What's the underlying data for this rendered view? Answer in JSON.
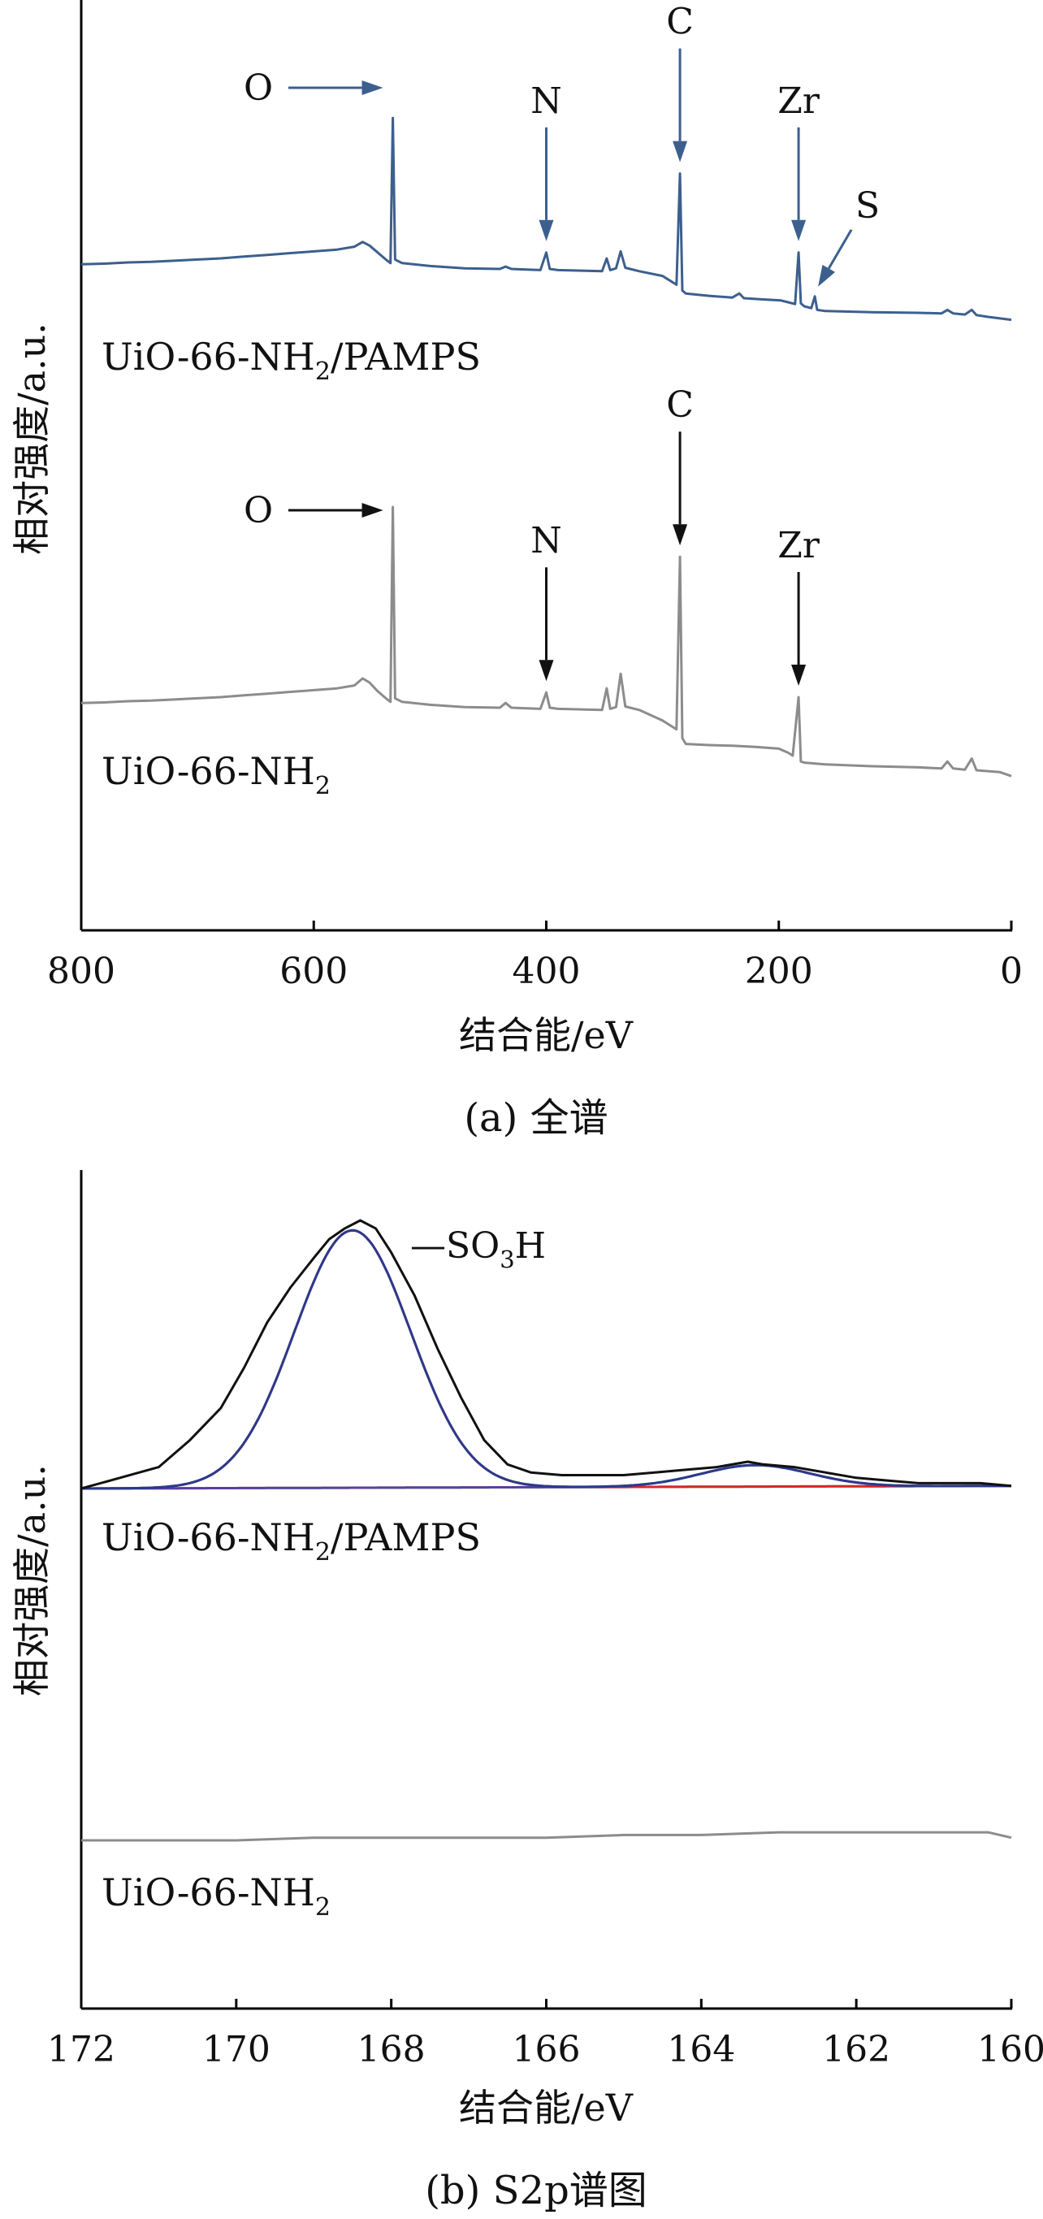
{
  "figure": {
    "panels": [
      {
        "caption": "(a) 全谱",
        "xlabel": "结合能/eV",
        "ylabel": "相对强度/a.u."
      },
      {
        "caption": "(b) S2p谱图",
        "xlabel": "结合能/eV",
        "ylabel": "相对强度/a.u."
      }
    ]
  },
  "colors": {
    "blue": "#3c5f8e",
    "gray": "#8c8c8c",
    "black": "#111111",
    "red": "#d62728",
    "purple": "#5b3fa0",
    "green": "#5cb85c",
    "navy": "#2a3a8c"
  },
  "chart_data": [
    {
      "type": "line",
      "title": "(a) 全谱",
      "xlabel": "结合能/eV",
      "ylabel": "相对强度/a.u.",
      "xlim": [
        800,
        0
      ],
      "x_reversed": true,
      "xticks": [
        800,
        600,
        400,
        200,
        0
      ],
      "y_ticks_shown": false,
      "series": [
        {
          "name": "UiO-66-NH2/PAMPS",
          "label_parts": [
            "UiO-66-NH",
            "2",
            "/PAMPS"
          ],
          "color": "blue",
          "points": [
            [
              800,
              0.9
            ],
            [
              780,
              0.91
            ],
            [
              760,
              0.93
            ],
            [
              740,
              0.94
            ],
            [
              720,
              0.96
            ],
            [
              700,
              0.98
            ],
            [
              680,
              1.0
            ],
            [
              660,
              1.03
            ],
            [
              640,
              1.06
            ],
            [
              620,
              1.09
            ],
            [
              600,
              1.12
            ],
            [
              580,
              1.15
            ],
            [
              565,
              1.2
            ],
            [
              558,
              1.28
            ],
            [
              552,
              1.22
            ],
            [
              545,
              1.1
            ],
            [
              538,
              0.98
            ],
            [
              534,
              0.92
            ],
            [
              532,
              3.4
            ],
            [
              530,
              0.98
            ],
            [
              524,
              0.92
            ],
            [
              500,
              0.87
            ],
            [
              470,
              0.83
            ],
            [
              440,
              0.82
            ],
            [
              435,
              0.86
            ],
            [
              430,
              0.82
            ],
            [
              405,
              0.8
            ],
            [
              400,
              1.1
            ],
            [
              397,
              0.82
            ],
            [
              390,
              0.8
            ],
            [
              352,
              0.78
            ],
            [
              348,
              1.0
            ],
            [
              345,
              0.8
            ],
            [
              340,
              0.83
            ],
            [
              336,
              1.12
            ],
            [
              332,
              0.84
            ],
            [
              320,
              0.78
            ],
            [
              300,
              0.7
            ],
            [
              292,
              0.6
            ],
            [
              288,
              0.55
            ],
            [
              285,
              2.45
            ],
            [
              283,
              0.45
            ],
            [
              280,
              0.4
            ],
            [
              260,
              0.36
            ],
            [
              240,
              0.33
            ],
            [
              234,
              0.4
            ],
            [
              230,
              0.32
            ],
            [
              215,
              0.3
            ],
            [
              198,
              0.28
            ],
            [
              192,
              0.25
            ],
            [
              186,
              0.22
            ],
            [
              183,
              1.1
            ],
            [
              181,
              0.23
            ],
            [
              178,
              0.18
            ],
            [
              172,
              0.15
            ],
            [
              169,
              0.35
            ],
            [
              167,
              0.12
            ],
            [
              160,
              0.1
            ],
            [
              120,
              0.08
            ],
            [
              80,
              0.07
            ],
            [
              60,
              0.06
            ],
            [
              55,
              0.12
            ],
            [
              50,
              0.06
            ],
            [
              40,
              0.04
            ],
            [
              34,
              0.12
            ],
            [
              30,
              0.03
            ],
            [
              20,
              0.0
            ],
            [
              0,
              -0.05
            ]
          ]
        },
        {
          "name": "UiO-66-NH2",
          "label_parts": [
            "UiO-66-NH",
            "2",
            ""
          ],
          "color": "gray",
          "points": [
            [
              800,
              0.9
            ],
            [
              780,
              0.91
            ],
            [
              760,
              0.93
            ],
            [
              740,
              0.94
            ],
            [
              720,
              0.96
            ],
            [
              700,
              0.98
            ],
            [
              680,
              1.0
            ],
            [
              660,
              1.03
            ],
            [
              640,
              1.06
            ],
            [
              620,
              1.09
            ],
            [
              600,
              1.12
            ],
            [
              580,
              1.15
            ],
            [
              565,
              1.2
            ],
            [
              558,
              1.32
            ],
            [
              552,
              1.25
            ],
            [
              545,
              1.1
            ],
            [
              538,
              0.98
            ],
            [
              534,
              0.92
            ],
            [
              532,
              4.25
            ],
            [
              530,
              0.98
            ],
            [
              524,
              0.92
            ],
            [
              500,
              0.87
            ],
            [
              470,
              0.83
            ],
            [
              440,
              0.82
            ],
            [
              435,
              0.9
            ],
            [
              430,
              0.82
            ],
            [
              405,
              0.8
            ],
            [
              400,
              1.08
            ],
            [
              397,
              0.82
            ],
            [
              390,
              0.8
            ],
            [
              352,
              0.78
            ],
            [
              348,
              1.15
            ],
            [
              345,
              0.8
            ],
            [
              340,
              0.83
            ],
            [
              336,
              1.4
            ],
            [
              332,
              0.84
            ],
            [
              320,
              0.78
            ],
            [
              300,
              0.6
            ],
            [
              292,
              0.5
            ],
            [
              288,
              0.45
            ],
            [
              285,
              3.4
            ],
            [
              283,
              0.3
            ],
            [
              280,
              0.2
            ],
            [
              260,
              0.18
            ],
            [
              240,
              0.17
            ],
            [
              220,
              0.15
            ],
            [
              200,
              0.12
            ],
            [
              192,
              0.05
            ],
            [
              188,
              0.0
            ],
            [
              183,
              1.0
            ],
            [
              181,
              -0.1
            ],
            [
              178,
              -0.12
            ],
            [
              160,
              -0.15
            ],
            [
              120,
              -0.18
            ],
            [
              80,
              -0.2
            ],
            [
              60,
              -0.22
            ],
            [
              55,
              -0.1
            ],
            [
              50,
              -0.22
            ],
            [
              40,
              -0.24
            ],
            [
              34,
              -0.05
            ],
            [
              30,
              -0.25
            ],
            [
              10,
              -0.28
            ],
            [
              0,
              -0.35
            ]
          ]
        }
      ],
      "annotations": [
        {
          "series": "UiO-66-NH2/PAMPS",
          "text": "O",
          "arrow": "right",
          "target_x": 532
        },
        {
          "series": "UiO-66-NH2/PAMPS",
          "text": "N",
          "arrow": "down",
          "target_x": 400
        },
        {
          "series": "UiO-66-NH2/PAMPS",
          "text": "C",
          "arrow": "down",
          "target_x": 285
        },
        {
          "series": "UiO-66-NH2/PAMPS",
          "text": "Zr",
          "arrow": "down",
          "target_x": 183
        },
        {
          "series": "UiO-66-NH2/PAMPS",
          "text": "S",
          "arrow": "down-left",
          "target_x": 169
        },
        {
          "series": "UiO-66-NH2",
          "text": "O",
          "arrow": "right",
          "target_x": 532
        },
        {
          "series": "UiO-66-NH2",
          "text": "N",
          "arrow": "down",
          "target_x": 400
        },
        {
          "series": "UiO-66-NH2",
          "text": "C",
          "arrow": "down",
          "target_x": 285
        },
        {
          "series": "UiO-66-NH2",
          "text": "Zr",
          "arrow": "down",
          "target_x": 183
        }
      ]
    },
    {
      "type": "line",
      "title": "(b) S2p谱图",
      "xlabel": "结合能/eV",
      "ylabel": "相对强度/a.u.",
      "xlim": [
        172,
        160
      ],
      "x_reversed": true,
      "xticks": [
        172,
        170,
        168,
        166,
        164,
        162,
        160
      ],
      "y_ticks_shown": false,
      "peak_label": {
        "parts": [
          "—SO",
          "3",
          "H"
        ]
      },
      "series": [
        {
          "name": "UiO-66-NH2/PAMPS",
          "label_parts": [
            "UiO-66-NH",
            "2",
            "/PAMPS"
          ],
          "color": "black",
          "role": "measured",
          "points": [
            [
              172,
              0.0
            ],
            [
              171.5,
              0.04
            ],
            [
              171,
              0.08
            ],
            [
              170.6,
              0.18
            ],
            [
              170.2,
              0.3
            ],
            [
              169.9,
              0.45
            ],
            [
              169.6,
              0.62
            ],
            [
              169.3,
              0.75
            ],
            [
              169.0,
              0.86
            ],
            [
              168.8,
              0.93
            ],
            [
              168.6,
              0.97
            ],
            [
              168.4,
              1.0
            ],
            [
              168.2,
              0.97
            ],
            [
              168.0,
              0.88
            ],
            [
              167.7,
              0.72
            ],
            [
              167.4,
              0.52
            ],
            [
              167.1,
              0.34
            ],
            [
              166.8,
              0.18
            ],
            [
              166.5,
              0.09
            ],
            [
              166.2,
              0.06
            ],
            [
              165.8,
              0.05
            ],
            [
              165.4,
              0.05
            ],
            [
              165.0,
              0.05
            ],
            [
              164.6,
              0.06
            ],
            [
              164.2,
              0.07
            ],
            [
              163.8,
              0.08
            ],
            [
              163.4,
              0.1
            ],
            [
              163.2,
              0.09
            ],
            [
              162.8,
              0.08
            ],
            [
              162.4,
              0.06
            ],
            [
              162.0,
              0.04
            ],
            [
              161.6,
              0.03
            ],
            [
              161.2,
              0.02
            ],
            [
              160.8,
              0.02
            ],
            [
              160.4,
              0.02
            ],
            [
              160.0,
              0.01
            ]
          ]
        },
        {
          "name": "UiO-66-NH2",
          "label_parts": [
            "UiO-66-NH",
            "2",
            ""
          ],
          "color": "gray",
          "points": [
            [
              172,
              0.0
            ],
            [
              171,
              0.0
            ],
            [
              170,
              0.0
            ],
            [
              169,
              0.01
            ],
            [
              168,
              0.01
            ],
            [
              167,
              0.01
            ],
            [
              166,
              0.01
            ],
            [
              165,
              0.02
            ],
            [
              164,
              0.02
            ],
            [
              163,
              0.03
            ],
            [
              162,
              0.03
            ],
            [
              161,
              0.03
            ],
            [
              160.3,
              0.03
            ],
            [
              160.0,
              0.01
            ]
          ]
        }
      ],
      "fit_components": [
        {
          "kind": "gaussian",
          "center": 168.5,
          "height": 0.96,
          "sigma": 0.75,
          "color": "red"
        },
        {
          "kind": "gaussian",
          "center": 163.3,
          "height": 0.08,
          "sigma": 0.7,
          "color": "purple"
        },
        {
          "kind": "baseline",
          "from": 0.0,
          "to": 0.01,
          "color": "green"
        },
        {
          "kind": "envelope",
          "color": "navy"
        }
      ]
    }
  ]
}
